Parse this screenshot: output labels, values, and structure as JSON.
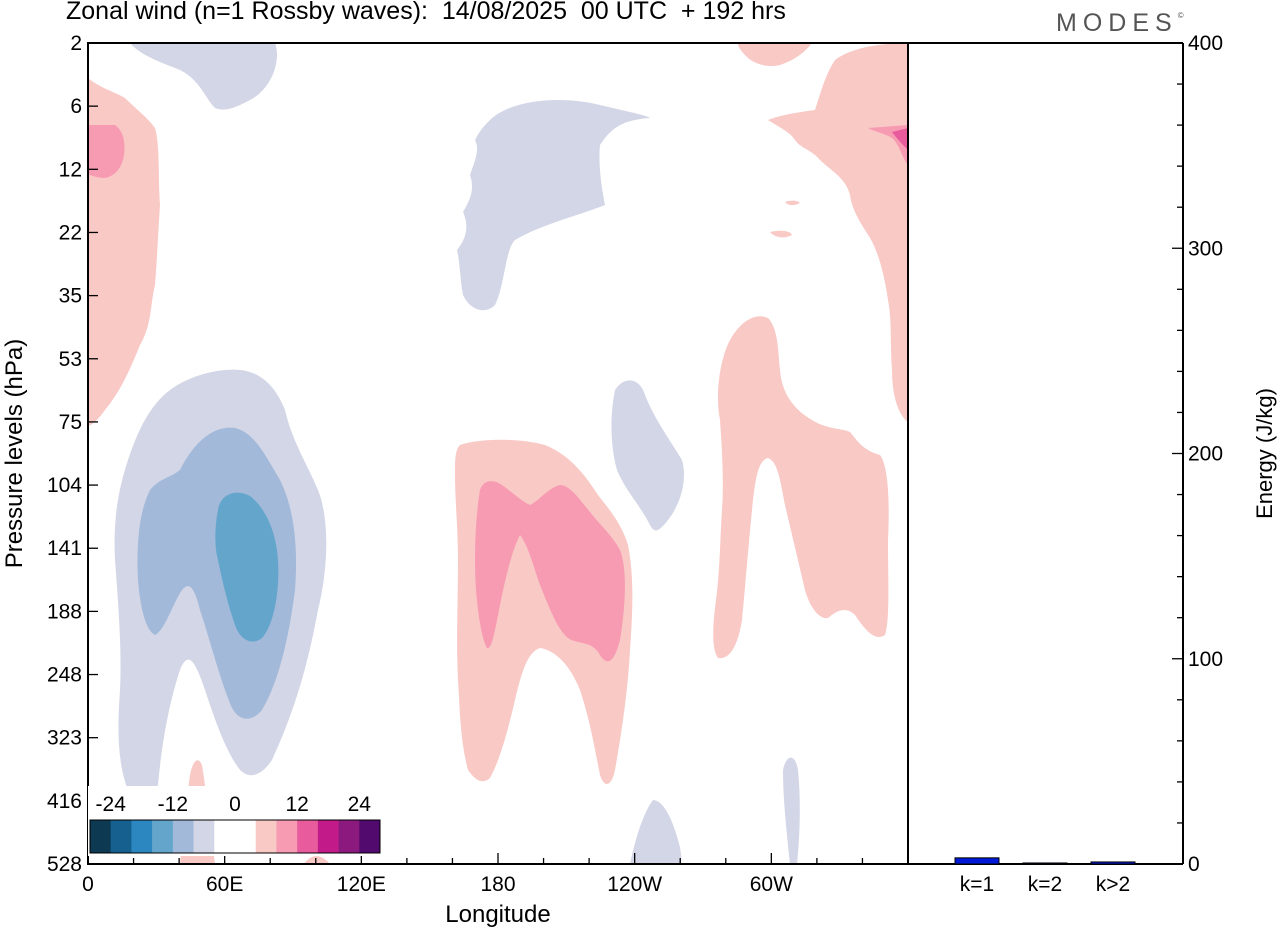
{
  "header": {
    "title": "Zonal wind (n=1 Rossby waves):  14/08/2025  00 UTC  + 192 hrs",
    "brand": "MODES",
    "brand_mark": "©"
  },
  "chart_data": [
    {
      "type": "contour",
      "xlabel": "Longitude",
      "ylabel": "Pressure levels (hPa)",
      "x_ticks": [
        "0",
        "60E",
        "120E",
        "180",
        "120W",
        "60W"
      ],
      "x_tick_degrees": [
        0,
        60,
        120,
        180,
        240,
        300
      ],
      "xlim": [
        0,
        360
      ],
      "y_ticks": [
        "2",
        "6",
        "12",
        "22",
        "35",
        "53",
        "75",
        "104",
        "141",
        "188",
        "248",
        "323",
        "416",
        "528"
      ],
      "y_scale": "pressure levels (top to bottom)",
      "colorbar": {
        "labels": [
          "-24",
          "-12",
          "0",
          "12",
          "24"
        ],
        "colors": [
          "#0d3a52",
          "#15608f",
          "#2c86bf",
          "#64a5cc",
          "#a2b9d9",
          "#d3d6e6",
          "#ffffff",
          "#ffffff",
          "#f9c9c6",
          "#f79bb3",
          "#e85c9e",
          "#c21b89",
          "#8c1a7e",
          "#520a6e"
        ]
      },
      "fills": [
        {
          "name": "negative light",
          "color": "#d3d6e6"
        },
        {
          "name": "negative medium",
          "color": "#a2b9d9"
        },
        {
          "name": "negative strong",
          "color": "#64a5cc"
        },
        {
          "name": "positive light",
          "color": "#f9c9c6"
        },
        {
          "name": "positive medium",
          "color": "#f79bb3"
        },
        {
          "name": "positive strong",
          "color": "#e85c9e"
        }
      ]
    },
    {
      "type": "bar",
      "ylabel": "Energy (J/kg)",
      "ylim": [
        0,
        400
      ],
      "y_ticks": [
        "0",
        "100",
        "200",
        "300",
        "400"
      ],
      "y_tick_values": [
        0,
        100,
        200,
        300,
        400
      ],
      "categories": [
        "k=1",
        "k=2",
        "k>2"
      ],
      "values": [
        3,
        0.5,
        1
      ],
      "bar_color": "#0018d8"
    }
  ]
}
